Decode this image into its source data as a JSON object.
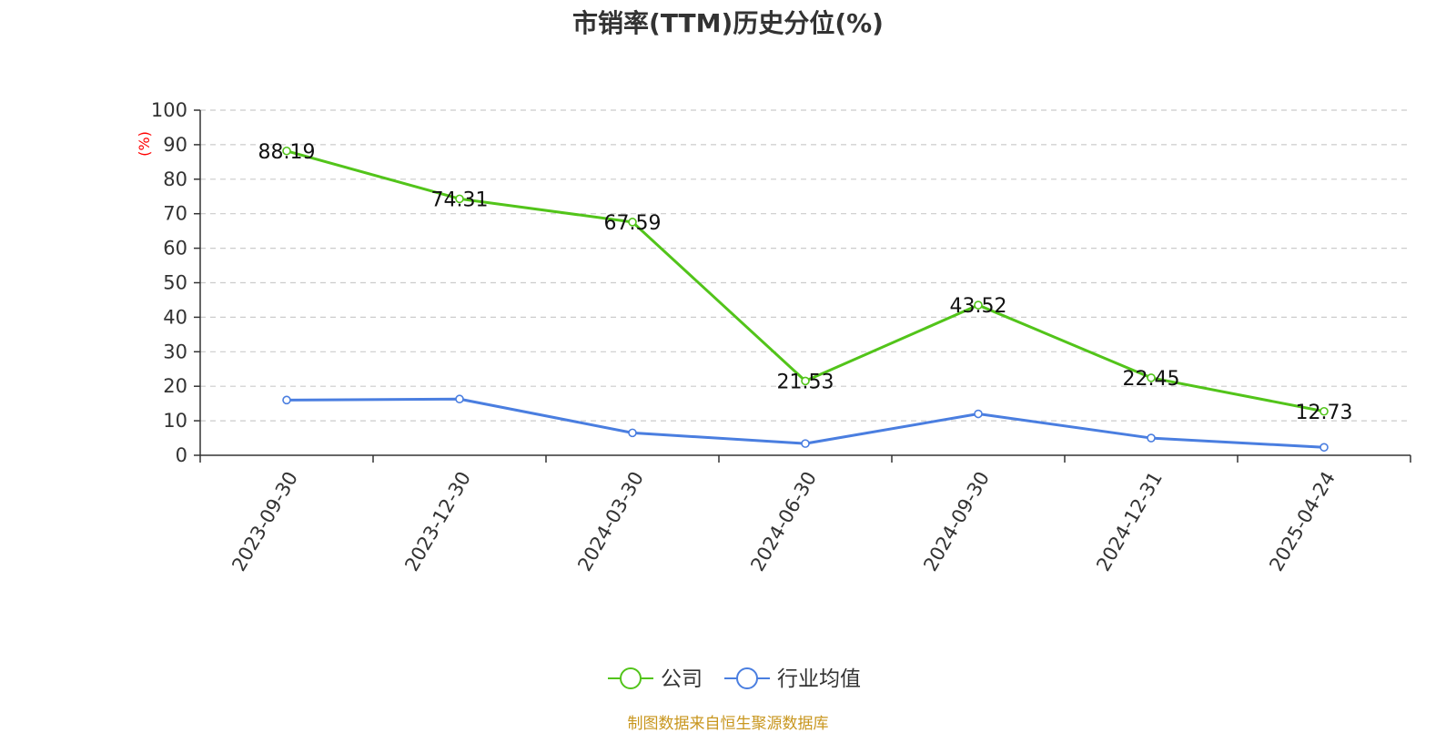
{
  "chart_data": {
    "type": "line",
    "title": "市销率(TTM)历史分位(%)",
    "ylabel": "(%)",
    "xlabel": "",
    "ylim": [
      0,
      100
    ],
    "yticks": [
      0,
      10,
      20,
      30,
      40,
      50,
      60,
      70,
      80,
      90,
      100
    ],
    "grid": true,
    "legend_position": "bottom",
    "categories": [
      "2023-09-30",
      "2023-12-30",
      "2024-03-30",
      "2024-06-30",
      "2024-09-30",
      "2024-12-31",
      "2025-04-24"
    ],
    "series": [
      {
        "name": "公司",
        "color": "#52c41a",
        "values": [
          88.19,
          74.31,
          67.59,
          21.53,
          43.52,
          22.45,
          12.73
        ],
        "show_labels": true
      },
      {
        "name": "行业均值",
        "color": "#4a7ee0",
        "values": [
          16.0,
          16.3,
          6.5,
          3.4,
          12.0,
          5.0,
          2.3
        ],
        "show_labels": false
      }
    ]
  },
  "source_note": "制图数据来自恒生聚源数据库"
}
